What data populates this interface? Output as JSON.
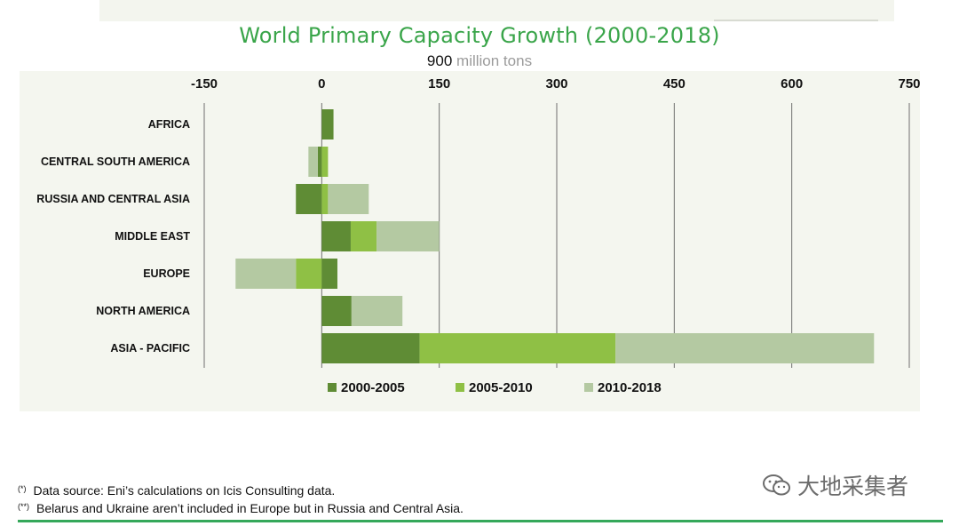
{
  "chart_data": {
    "type": "bar",
    "orientation": "horizontal",
    "stacked": true,
    "title": "World Primary Capacity Growth (2000-2018)",
    "subtitle_value": "900",
    "subtitle_unit": "million tons",
    "xlim": [
      -150,
      750
    ],
    "xticks": [
      -150,
      0,
      150,
      300,
      450,
      600,
      750
    ],
    "categories": [
      "AFRICA",
      "CENTRAL SOUTH AMERICA",
      "RUSSIA AND CENTRAL ASIA",
      "MIDDLE EAST",
      "EUROPE",
      "NORTH AMERICA",
      "ASIA - PACIFIC"
    ],
    "series": [
      {
        "name": "2000-2005",
        "color": "#5f8c35",
        "values": [
          15,
          -5,
          -33,
          37,
          20,
          38,
          125
        ]
      },
      {
        "name": "2005-2010",
        "color": "#8fc045",
        "values": [
          0,
          8,
          8,
          33,
          -33,
          0,
          250
        ]
      },
      {
        "name": "2010-2018",
        "color": "#b4c9a2",
        "values": [
          0,
          -12,
          52,
          80,
          -77,
          65,
          330
        ]
      }
    ],
    "legend_position": "bottom-center",
    "grid": true
  },
  "footnotes": [
    {
      "marker": "(*)",
      "text": "Data source: Eni’s calculations on Icis Consulting data."
    },
    {
      "marker": "(**)",
      "text": "Belarus and Ukraine aren’t included in Europe but in Russia and Central Asia."
    }
  ],
  "watermark": "大地采集者",
  "colors": {
    "title": "#3aa54a",
    "accent_line": "#35a85a",
    "panel_bg": "#f4f6ef"
  }
}
